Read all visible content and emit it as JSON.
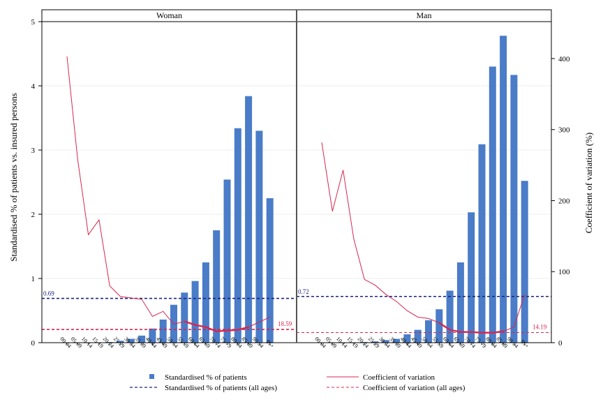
{
  "chart_data": {
    "type": "bar",
    "categories": [
      "00-04",
      "05-09",
      "10-14",
      "15-19",
      "20-24",
      "25-29",
      "30-34",
      "35-39",
      "40-44",
      "45-49",
      "50-54",
      "55-59",
      "60-64",
      "65-69",
      "70-74",
      "75-79",
      "80-84",
      "85-89",
      "90-94",
      "95+"
    ],
    "ylabel": "Standardised % of patients vs. insured persons",
    "y2label": "Coefficient of variation (%)",
    "ylim": [
      0,
      5
    ],
    "y2lim": [
      0,
      452
    ],
    "yticks": [
      "0",
      "1",
      "2",
      "3",
      "4",
      "5"
    ],
    "y2ticks": [
      "0",
      "100",
      "200",
      "300",
      "400"
    ],
    "panels": [
      {
        "title": "Woman",
        "bars": [
          0.0,
          0.0,
          0.0,
          0.0,
          0.01,
          0.03,
          0.06,
          0.11,
          0.22,
          0.36,
          0.59,
          0.78,
          0.96,
          1.25,
          1.75,
          2.54,
          3.34,
          3.84,
          3.3,
          2.25
        ],
        "cv": [
          403,
          258,
          152,
          173,
          80,
          65,
          63,
          61,
          37,
          44,
          26,
          30,
          25,
          22,
          16,
          17,
          18,
          22,
          29,
          36
        ],
        "cv_thick_from_index": 11,
        "ref_patients": 0.69,
        "ref_patients_label": "0.69",
        "ref_cv": 18.59,
        "ref_cv_label": "18.59"
      },
      {
        "title": "Man",
        "bars": [
          0.0,
          0.0,
          0.0,
          0.0,
          0.01,
          0.02,
          0.04,
          0.06,
          0.13,
          0.2,
          0.35,
          0.52,
          0.81,
          1.25,
          2.03,
          3.09,
          4.3,
          4.78,
          4.17,
          2.52
        ],
        "cv": [
          282,
          185,
          243,
          146,
          89,
          81,
          68,
          58,
          45,
          36,
          34,
          28,
          18,
          15,
          15,
          14,
          14,
          16,
          22,
          68
        ],
        "cv_thick_from_index": 11,
        "ref_patients": 0.72,
        "ref_patients_label": "0.72",
        "ref_cv": 14.19,
        "ref_cv_label": "14.19"
      }
    ],
    "legend": {
      "bars": "Standardised % of patients",
      "cv": "Coefficient of variation",
      "ref_patients": "Standardised % of patients (all ages)",
      "ref_cv": "Coefficient of variation (all ages)"
    },
    "colors": {
      "bar": "#4a7cc7",
      "cv": "#d8264f",
      "ref_patients": "#1a237e",
      "ref_cv": "#d8264f"
    }
  }
}
